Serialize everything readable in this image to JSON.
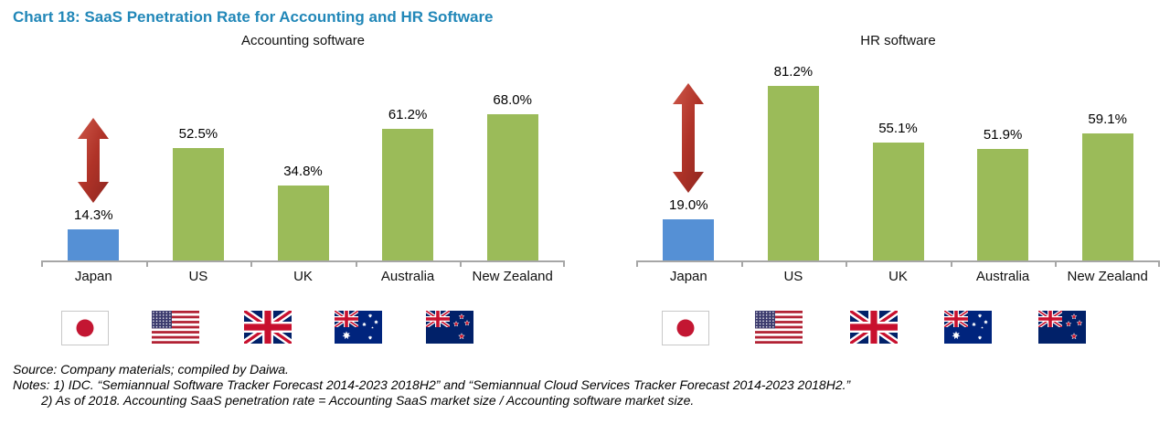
{
  "page": {
    "title": "Chart 18: SaaS Penetration Rate for Accounting and HR Software"
  },
  "colors": {
    "title_blue": "#2187B8",
    "bar_green": "#9BBB59",
    "bar_blue": "#5590D5",
    "arrow_red_light": "#CE584A",
    "arrow_red_dark": "#8E2620",
    "axis_gray": "#A6A6A6"
  },
  "chart_data": [
    {
      "type": "bar",
      "title": "Accounting software",
      "categories": [
        "Japan",
        "US",
        "UK",
        "Australia",
        "New Zealand"
      ],
      "values": [
        14.3,
        52.5,
        34.8,
        61.2,
        68.0
      ],
      "data_labels": [
        "14.3%",
        "52.5%",
        "34.8%",
        "61.2%",
        "68.0%"
      ],
      "highlight_category": "Japan",
      "bar_color_default": "#9BBB59",
      "bar_color_highlight": "#5590D5",
      "flags": [
        "japan",
        "us",
        "uk",
        "australia",
        "new-zealand"
      ],
      "annotation": {
        "type": "double-headed-arrow",
        "target_category": "Japan",
        "color": "#B03328"
      },
      "ylim": [
        0,
        85
      ],
      "y_axis": "hidden",
      "gridlines": false,
      "legend": "none"
    },
    {
      "type": "bar",
      "title": "HR software",
      "categories": [
        "Japan",
        "US",
        "UK",
        "Australia",
        "New Zealand"
      ],
      "values": [
        19.0,
        81.2,
        55.1,
        51.9,
        59.1
      ],
      "data_labels": [
        "19.0%",
        "81.2%",
        "55.1%",
        "51.9%",
        "59.1%"
      ],
      "highlight_category": "Japan",
      "bar_color_default": "#9BBB59",
      "bar_color_highlight": "#5590D5",
      "flags": [
        "japan",
        "us",
        "uk",
        "australia",
        "new-zealand"
      ],
      "annotation": {
        "type": "double-headed-arrow",
        "target_category": "Japan",
        "color": "#B03328"
      },
      "ylim": [
        0,
        85
      ],
      "y_axis": "hidden",
      "gridlines": false,
      "legend": "none"
    }
  ],
  "notes": {
    "source": "Source: Company materials; compiled by Daiwa.",
    "note1": "Notes: 1) IDC. “Semiannual Software Tracker Forecast 2014-2023 2018H2” and “Semiannual Cloud Services Tracker Forecast 2014-2023 2018H2.”",
    "note2": "2) As of 2018. Accounting SaaS penetration rate = Accounting SaaS market size / Accounting software market size."
  }
}
